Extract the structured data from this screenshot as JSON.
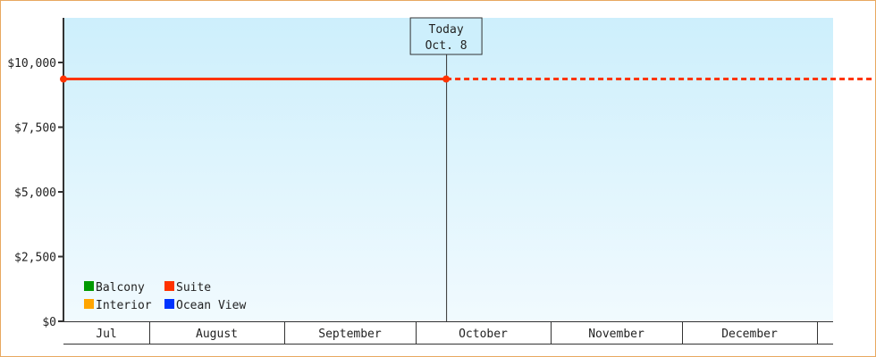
{
  "chart_data": {
    "type": "line",
    "title": "",
    "xlabel": "",
    "ylabel": "",
    "ylim": [
      0,
      11500
    ],
    "yticks": [
      {
        "value": 0,
        "label": "$0"
      },
      {
        "value": 2500,
        "label": "$2,500"
      },
      {
        "value": 5000,
        "label": "$5,000"
      },
      {
        "value": 7500,
        "label": "$7,500"
      },
      {
        "value": 10000,
        "label": "$10,000"
      }
    ],
    "months": [
      "Jul",
      "August",
      "September",
      "October",
      "November",
      "December"
    ],
    "today": {
      "line1": "Today",
      "line2": "Oct. 8",
      "date": "10-08"
    },
    "grid": false,
    "legend_placement": "bottom-left",
    "legend": [
      {
        "name": "Balcony",
        "color": "#009900"
      },
      {
        "name": "Suite",
        "color": "#ff3300"
      },
      {
        "name": "Interior",
        "color": "#ffa500"
      },
      {
        "name": "Ocean View",
        "color": "#0033ff"
      }
    ],
    "series": [
      {
        "name": "Suite",
        "color": "#ff3300",
        "points": [
          {
            "x": "07-12",
            "y": 9360
          },
          {
            "x": "10-08",
            "y": 9360
          }
        ],
        "projection": [
          {
            "x": "10-08",
            "y": 9360
          },
          {
            "x": "12-31",
            "y": 9360
          }
        ]
      }
    ]
  }
}
